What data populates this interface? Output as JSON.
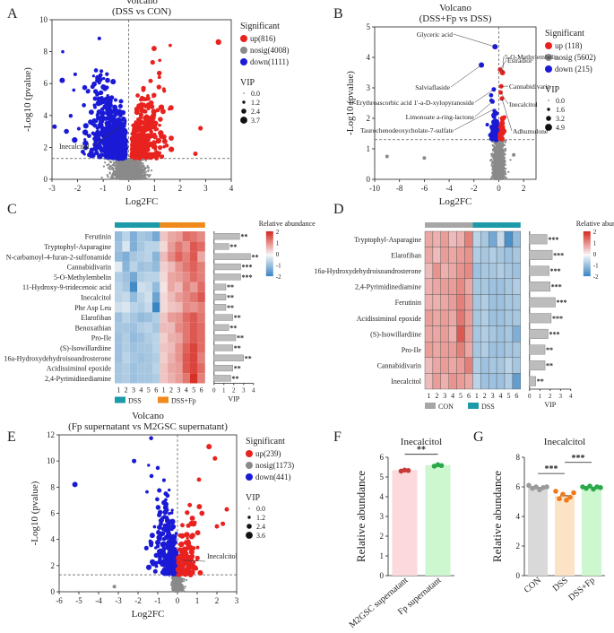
{
  "panel_labels": [
    "A",
    "B",
    "C",
    "D",
    "E",
    "F",
    "G"
  ],
  "colors": {
    "up": "#e8221f",
    "nosig": "#8a8a8a",
    "down": "#1a1ad6",
    "cold": "#2f7fc1",
    "hot": "#d73027",
    "mid": "#f7f7f7",
    "teal": "#1d9aa8",
    "orange": "#f08a1c",
    "gray": "#a6a6a6",
    "pinkbar": "#fbd9dd",
    "greenbar": "#cdf7cf",
    "orangebar": "#fde3c6",
    "graybar": "#d9d9d9",
    "ptGreen": "#2aa84a",
    "ptOrange": "#f07a1a",
    "ptGray": "#9a9a9a",
    "ptRed": "#c73a36"
  },
  "chart_data": [
    {
      "id": "A",
      "type": "scatter",
      "title": "Volcano",
      "subtitle": "(DSS vs CON)",
      "xlabel": "Log2FC",
      "ylabel": "-Log10 (pvalue)",
      "xlim": [
        -3,
        4
      ],
      "ylim": [
        0,
        10
      ],
      "xticks": [
        "-3",
        "-2",
        "-1",
        "0",
        "1",
        "2",
        "3",
        "4"
      ],
      "yticks": [
        "0",
        "2",
        "4",
        "6",
        "8",
        "10"
      ],
      "legend_title": "Significant",
      "legend": [
        "up(816)",
        "nosig(4008)",
        "down(1111)"
      ],
      "vip_title": "VIP",
      "vip_values": [
        "0.0",
        "1.2",
        "2.4",
        "3.7"
      ],
      "annotation": "Inecalcitol",
      "threshold_y": 1.3,
      "counts": {
        "up": 816,
        "nosig": 4008,
        "down": 1111
      }
    },
    {
      "id": "B",
      "type": "scatter",
      "title": "Volcano",
      "subtitle": "(DSS+Fp vs DSS)",
      "xlabel": "Log2FC",
      "ylabel": "-Log10 (pvalue)",
      "xlim": [
        -10,
        3
      ],
      "ylim": [
        0,
        5
      ],
      "xticks": [
        "-10",
        "-8",
        "-6",
        "-4",
        "-2",
        "0",
        "2"
      ],
      "yticks": [
        "0",
        "1",
        "2",
        "3",
        "4",
        "5"
      ],
      "legend_title": "Significant",
      "legend": [
        "up (118)",
        "nosig (5602)",
        "down (215)"
      ],
      "vip_title": "VIP",
      "vip_values": [
        "0.0",
        "1.6",
        "3.2",
        "4.9"
      ],
      "annotations": [
        "Glyceric acid",
        "Estradiol",
        "5-O-Methylembelin",
        "Salviaflaside",
        "D-Erythroascorbic acid 1'-a-D-xylopyranoside",
        "Cannabidivarin",
        "Limonoate a-ring-lactone",
        "Inecalcitol",
        "Adhumulone",
        "Taurochenodeoxycholate-7-sulfate"
      ],
      "threshold_y": 1.3,
      "counts": {
        "up": 118,
        "nosig": 5602,
        "down": 215
      }
    },
    {
      "id": "C",
      "type": "heatmap",
      "legend_title": "Relative abundance",
      "scale": [
        "2",
        "1",
        "0",
        "-1",
        "-2"
      ],
      "rows": [
        "Ferutinin",
        "Tryptophyl-Asparagine",
        "N-carbamoyl-4-furan-2-sulfonamide",
        "Cannabidivarin",
        "5-O-Methylembelin",
        "11-Hydroxy-9-tridecenoic acid",
        "Inecalcitol",
        "Phe Asp Leu",
        "Elarofiban",
        "Benoxathian",
        "Pro-Ile",
        "(S)-Isowillardiine",
        "16a-Hydroxydehydroisoandrosterone",
        "Acidissiminol epoxide",
        "2,4-Pyrimidinediamine"
      ],
      "columns": [
        "1",
        "2",
        "3",
        "4",
        "5",
        "6",
        "1",
        "2",
        "3",
        "4",
        "5",
        "6"
      ],
      "groups": [
        "DSS",
        "DSS+Fp"
      ],
      "vip": [
        2.6,
        1.5,
        3.7,
        2.7,
        2.7,
        1.2,
        1.2,
        1.2,
        1.9,
        1.5,
        2.2,
        1.9,
        3.0,
        1.9,
        1.7
      ],
      "sig": [
        "**",
        "**",
        "**",
        "***",
        "***",
        "**",
        "**",
        "**",
        "**",
        "**",
        "**",
        "**",
        "**",
        "**",
        "**"
      ],
      "vip_xlabel": "VIP",
      "vip_xticks": [
        "0",
        "1",
        "2",
        "3",
        "4"
      ],
      "values": [
        [
          -1.0,
          -0.6,
          -1.2,
          -0.8,
          -0.9,
          -1.3,
          0.5,
          0.8,
          0.9,
          1.4,
          1.3,
          1.1
        ],
        [
          -0.9,
          -0.3,
          -1.2,
          -0.8,
          -0.6,
          -0.6,
          0.3,
          0.9,
          1.3,
          1.0,
          1.6,
          1.4
        ],
        [
          -1.0,
          -1.2,
          -0.8,
          -0.7,
          -0.6,
          -1.1,
          0.6,
          1.1,
          1.5,
          1.2,
          1.6,
          0.8
        ],
        [
          -0.2,
          -1.1,
          -0.6,
          -0.9,
          -0.8,
          -1.0,
          0.4,
          0.6,
          1.0,
          1.3,
          1.5,
          1.2
        ],
        [
          -0.7,
          -0.9,
          -1.3,
          -0.7,
          -0.6,
          -0.6,
          0.3,
          0.8,
          0.9,
          1.1,
          1.4,
          1.2
        ],
        [
          -0.6,
          -0.8,
          -1.8,
          -0.4,
          -0.5,
          -1.0,
          0.2,
          0.8,
          0.6,
          1.2,
          0.9,
          1.4
        ],
        [
          -0.6,
          -0.5,
          -1.0,
          -0.6,
          -0.4,
          -1.4,
          0.3,
          0.6,
          0.9,
          1.1,
          1.3,
          1.6
        ],
        [
          -0.4,
          -0.3,
          -0.6,
          -0.7,
          -0.5,
          -1.9,
          0.3,
          0.5,
          0.6,
          1.1,
          1.0,
          1.2
        ],
        [
          -0.9,
          -0.6,
          -0.8,
          -1.0,
          -0.9,
          -0.7,
          0.5,
          0.9,
          1.0,
          1.4,
          1.6,
          1.3
        ],
        [
          -0.8,
          -0.8,
          -0.9,
          -0.7,
          -0.6,
          -0.8,
          0.6,
          0.6,
          1.1,
          1.3,
          1.6,
          1.4
        ],
        [
          -0.9,
          -0.7,
          -1.0,
          -0.9,
          -0.7,
          -0.6,
          0.4,
          0.7,
          0.8,
          1.3,
          1.6,
          1.4
        ],
        [
          -0.9,
          -0.7,
          -0.9,
          -0.8,
          -0.8,
          -0.6,
          0.5,
          0.6,
          1.0,
          1.5,
          1.8,
          1.4
        ],
        [
          -0.9,
          -0.6,
          -0.8,
          -0.9,
          -0.8,
          -0.7,
          0.4,
          0.7,
          1.0,
          1.6,
          1.8,
          1.2
        ],
        [
          -0.8,
          -0.7,
          -0.9,
          -0.8,
          -0.8,
          -0.6,
          0.5,
          0.8,
          0.9,
          1.6,
          1.8,
          1.4
        ],
        [
          -0.8,
          -0.7,
          -0.9,
          -0.8,
          -0.8,
          -0.7,
          0.5,
          0.7,
          0.9,
          1.3,
          2.0,
          1.2
        ]
      ]
    },
    {
      "id": "D",
      "type": "heatmap",
      "legend_title": "Relative abundance",
      "scale": [
        "2",
        "1",
        "0",
        "-1",
        "-2"
      ],
      "rows": [
        "Tryptophyl-Asparagine",
        "Elarofiban",
        "16a-Hydroxydehydroisoandrosterone",
        "2,4-Pyrimidinediamine",
        "Ferutinin",
        "Acidissiminol epoxide",
        "(S)-Isowillardiine",
        "Pro-Ile",
        "Cannabidivarin",
        "Inecalcitol"
      ],
      "columns": [
        "1",
        "2",
        "3",
        "4",
        "5",
        "6",
        "1",
        "2",
        "3",
        "4",
        "5",
        "6"
      ],
      "groups": [
        "CON",
        "DSS"
      ],
      "vip": [
        1.7,
        2.2,
        1.9,
        2.0,
        2.5,
        2.1,
        1.8,
        1.5,
        1.5,
        0.6
      ],
      "sig": [
        "***",
        "***",
        "***",
        "***",
        "***",
        "***",
        "***",
        "**",
        "**",
        "**"
      ],
      "vip_xlabel": "VIP",
      "vip_xticks": [
        "0",
        "1",
        "2",
        "3",
        "4"
      ],
      "values": [
        [
          0.8,
          0.7,
          0.9,
          0.6,
          0.7,
          1.2,
          -0.6,
          -0.8,
          -1.3,
          -0.5,
          -1.7,
          -1.0
        ],
        [
          0.8,
          0.6,
          0.9,
          0.8,
          0.9,
          1.0,
          -0.7,
          -0.8,
          -0.7,
          -0.8,
          -0.9,
          -0.8
        ],
        [
          0.6,
          1.0,
          0.7,
          0.8,
          1.0,
          1.1,
          -0.9,
          -0.8,
          -0.8,
          -0.7,
          -0.8,
          -0.9
        ],
        [
          0.7,
          0.8,
          0.9,
          0.9,
          1.1,
          0.8,
          -0.8,
          -0.8,
          -0.9,
          -0.9,
          -0.8,
          -0.7
        ],
        [
          0.7,
          0.7,
          0.8,
          0.9,
          1.2,
          0.9,
          -0.8,
          -0.7,
          -0.9,
          -0.9,
          -0.8,
          -0.8
        ],
        [
          0.9,
          0.8,
          0.9,
          0.8,
          1.3,
          0.9,
          -0.8,
          -0.7,
          -0.9,
          -0.9,
          -0.8,
          -0.8
        ],
        [
          0.8,
          0.8,
          0.9,
          0.7,
          1.6,
          0.9,
          -0.8,
          -0.7,
          -0.8,
          -0.9,
          -0.8,
          -1.2
        ],
        [
          0.9,
          0.8,
          0.9,
          0.9,
          1.2,
          0.8,
          -0.8,
          -0.7,
          -0.9,
          -0.9,
          -0.8,
          -0.8
        ],
        [
          0.6,
          0.8,
          0.9,
          0.8,
          0.9,
          1.2,
          -0.7,
          -0.9,
          -0.8,
          -0.8,
          -0.6,
          -0.8
        ],
        [
          0.6,
          0.9,
          0.7,
          1.0,
          0.9,
          0.8,
          -0.6,
          -0.9,
          -0.9,
          -0.9,
          -0.7,
          -1.5
        ]
      ]
    },
    {
      "id": "E",
      "type": "scatter",
      "title": "Volcano",
      "subtitle": "(Fp  supernatant vs M2GSC supernatant)",
      "xlabel": "Log2FC",
      "ylabel": "-Log10 (pvalue)",
      "xlim": [
        -6,
        3
      ],
      "ylim": [
        0,
        12
      ],
      "xticks": [
        "-6",
        "-5",
        "-4",
        "-3",
        "-2",
        "-1",
        "0",
        "1",
        "2",
        "3"
      ],
      "yticks": [
        "0",
        "2",
        "4",
        "6",
        "8",
        "10",
        "12"
      ],
      "legend_title": "Significant",
      "legend": [
        "up(239)",
        "nosig(1173)",
        "down(441)"
      ],
      "vip_title": "VIP",
      "vip_values": [
        "0.0",
        "1.2",
        "2.4",
        "3.6"
      ],
      "annotation": "Inecalcitol",
      "threshold_y": 1.3,
      "counts": {
        "up": 239,
        "nosig": 1173,
        "down": 441
      }
    },
    {
      "id": "F",
      "type": "bar",
      "title": "Inecalcitol",
      "ylabel": "Relative abundance",
      "categories": [
        "M2GSC supernatant",
        "Fp supernatant"
      ],
      "values": [
        5.35,
        5.6
      ],
      "ylim": [
        0,
        6
      ],
      "yticks": [
        "0",
        "1",
        "2",
        "3",
        "4",
        "5",
        "6"
      ],
      "sig": "**",
      "points": [
        [
          5.3,
          5.35,
          5.33
        ],
        [
          5.55,
          5.62,
          5.58
        ]
      ]
    },
    {
      "id": "G",
      "type": "bar",
      "title": "Inecalcitol",
      "ylabel": "Relative abundance",
      "categories": [
        "CON",
        "DSS",
        "DSS+Fp"
      ],
      "values": [
        5.95,
        5.4,
        5.95
      ],
      "ylim": [
        0,
        8
      ],
      "yticks": [
        "0",
        "2",
        "4",
        "6",
        "8"
      ],
      "sig": [
        "***",
        "***"
      ],
      "points": [
        [
          6.1,
          5.9,
          6.0,
          5.8,
          5.95,
          6.0
        ],
        [
          5.7,
          5.2,
          5.5,
          5.1,
          5.3,
          5.6
        ],
        [
          6.0,
          5.9,
          6.05,
          5.85,
          6.0,
          5.95
        ]
      ]
    }
  ]
}
